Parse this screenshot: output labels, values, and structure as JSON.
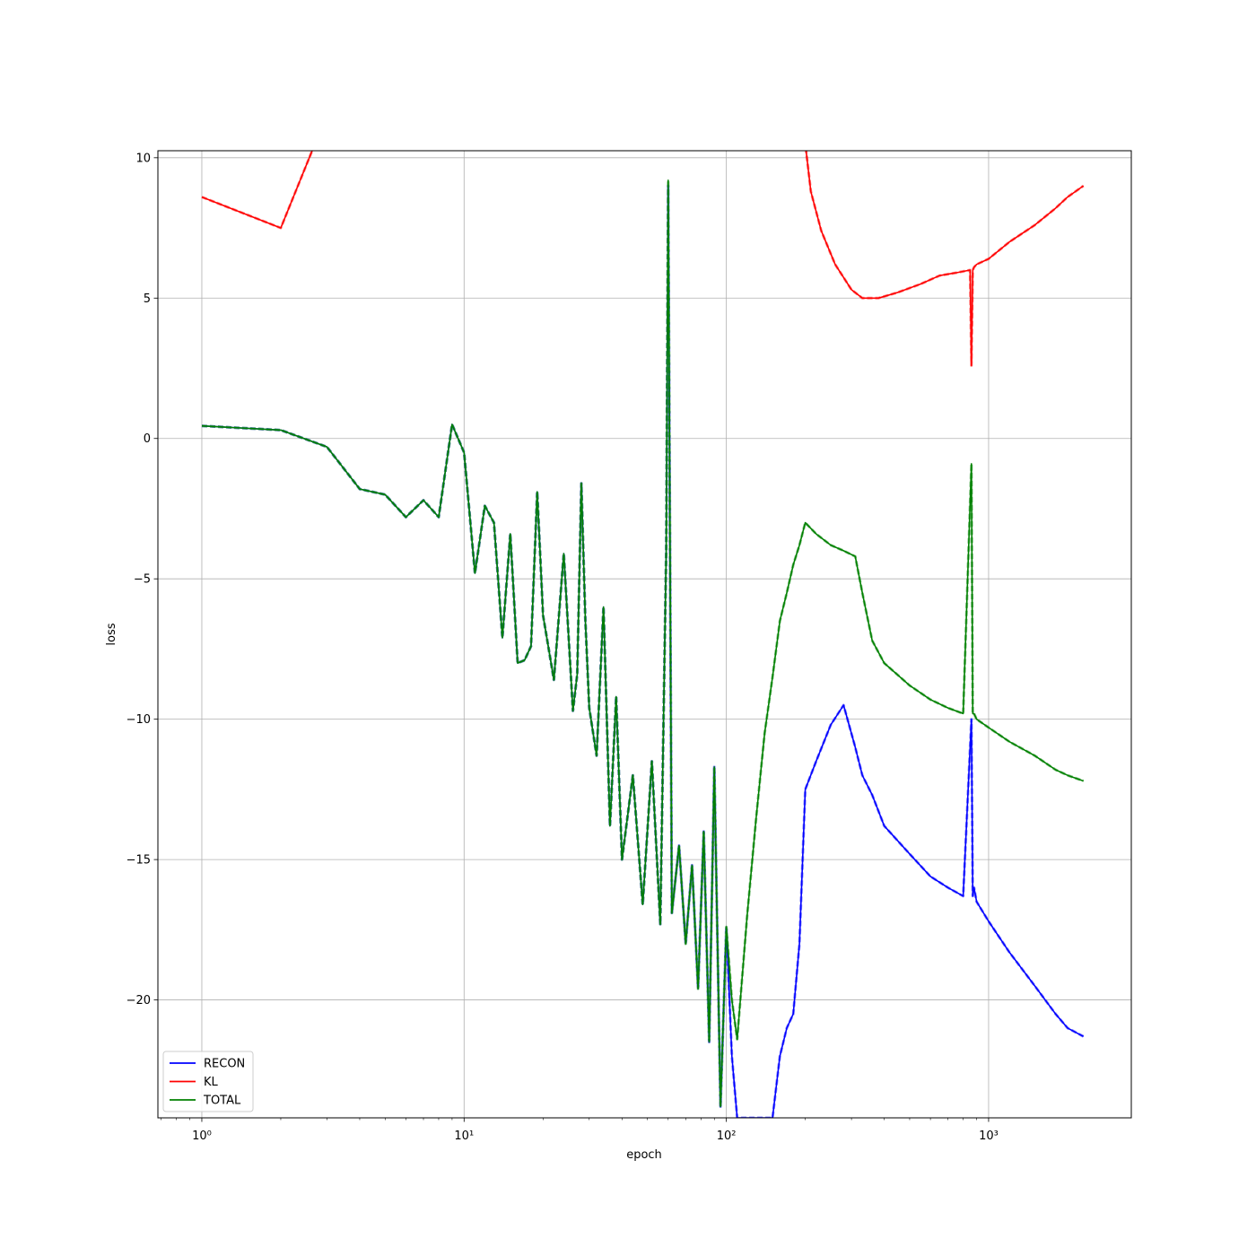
{
  "chart_data": {
    "type": "line",
    "title": "",
    "xlabel": "epoch",
    "ylabel": "loss",
    "xscale": "log",
    "xlim": [
      0.68,
      3500
    ],
    "ylim": [
      -24.2,
      10.25
    ],
    "grid": true,
    "legend_position": "lower-left",
    "x_ticks": [
      {
        "value": 1,
        "label": "10⁰"
      },
      {
        "value": 10,
        "label": "10¹"
      },
      {
        "value": 100,
        "label": "10²"
      },
      {
        "value": 1000,
        "label": "10³"
      }
    ],
    "y_ticks": [
      {
        "value": 10,
        "label": "10"
      },
      {
        "value": 5,
        "label": "5"
      },
      {
        "value": 0,
        "label": "0"
      },
      {
        "value": -5,
        "label": "−5"
      },
      {
        "value": -10,
        "label": "−10"
      },
      {
        "value": -15,
        "label": "−15"
      },
      {
        "value": -20,
        "label": "−20"
      }
    ],
    "series": [
      {
        "name": "RECON",
        "color": "#0000ff",
        "x": [
          1,
          2,
          3,
          4,
          5,
          6,
          7,
          8,
          9,
          10,
          11,
          12,
          13,
          14,
          15,
          16,
          17,
          18,
          19,
          20,
          22,
          24,
          26,
          27,
          28,
          29,
          30,
          32,
          34,
          36,
          38,
          40,
          44,
          48,
          52,
          56,
          59,
          60,
          62,
          66,
          70,
          74,
          78,
          82,
          86,
          90,
          95,
          100,
          105,
          110,
          120,
          150,
          160,
          170,
          180,
          190,
          200,
          220,
          250,
          280,
          310,
          330,
          360,
          400,
          500,
          600,
          700,
          800,
          860,
          870,
          880,
          900,
          1000,
          1200,
          1500,
          1800,
          2000,
          2300
        ],
        "values": [
          0.45,
          0.3,
          -0.3,
          -1.8,
          -2.0,
          -2.8,
          -2.2,
          -2.8,
          0.5,
          -0.5,
          -4.8,
          -2.4,
          -3.0,
          -7.1,
          -3.4,
          -8.0,
          -7.9,
          -7.4,
          -1.9,
          -6.3,
          -8.6,
          -4.1,
          -9.7,
          -8.4,
          -1.6,
          -6.5,
          -9.6,
          -11.3,
          -6.0,
          -13.8,
          -9.2,
          -15.0,
          -12.0,
          -16.6,
          -11.5,
          -17.3,
          -4.0,
          9.0,
          -16.9,
          -14.5,
          -18.0,
          -15.2,
          -19.6,
          -14.0,
          -21.5,
          -11.7,
          -23.8,
          -17.4,
          -22.0,
          -24.2,
          -24.2,
          -24.2,
          -22.0,
          -21.0,
          -20.5,
          -18.0,
          -12.5,
          -11.5,
          -10.2,
          -9.5,
          -11.0,
          -12.0,
          -12.7,
          -13.8,
          -14.8,
          -15.6,
          -16.0,
          -16.3,
          -10.0,
          -16.3,
          -16.0,
          -16.5,
          -17.2,
          -18.3,
          -19.5,
          -20.5,
          -21.0,
          -21.3
        ]
      },
      {
        "name": "KL",
        "color": "#ff0000",
        "x": [
          1,
          2,
          2.7,
          200,
          210,
          230,
          260,
          300,
          330,
          380,
          450,
          550,
          650,
          750,
          850,
          860,
          870,
          880,
          900,
          1000,
          1200,
          1500,
          1800,
          2000,
          2300
        ],
        "values": [
          8.6,
          7.5,
          10.5,
          10.5,
          8.8,
          7.4,
          6.2,
          5.3,
          5.0,
          5.0,
          5.2,
          5.5,
          5.8,
          5.9,
          6.0,
          2.6,
          6.0,
          6.1,
          6.2,
          6.4,
          7.0,
          7.6,
          8.2,
          8.6,
          9.0
        ]
      },
      {
        "name": "TOTAL",
        "color": "#008000",
        "x": [
          1,
          2,
          3,
          4,
          5,
          6,
          7,
          8,
          9,
          10,
          11,
          12,
          13,
          14,
          15,
          16,
          17,
          18,
          19,
          20,
          22,
          24,
          26,
          27,
          28,
          29,
          30,
          32,
          34,
          36,
          38,
          40,
          44,
          48,
          52,
          56,
          59,
          60,
          62,
          66,
          70,
          74,
          78,
          82,
          86,
          90,
          95,
          100,
          105,
          110,
          120,
          130,
          140,
          150,
          160,
          170,
          180,
          190,
          200,
          220,
          250,
          280,
          310,
          330,
          360,
          400,
          500,
          600,
          700,
          800,
          860,
          870,
          880,
          900,
          1000,
          1200,
          1500,
          1800,
          2000,
          2300
        ],
        "values": [
          0.45,
          0.3,
          -0.3,
          -1.8,
          -2.0,
          -2.8,
          -2.2,
          -2.8,
          0.5,
          -0.5,
          -4.8,
          -2.4,
          -3.0,
          -7.1,
          -3.4,
          -8.0,
          -7.9,
          -7.4,
          -1.9,
          -6.3,
          -8.6,
          -4.1,
          -9.7,
          -8.4,
          -1.6,
          -6.5,
          -9.6,
          -11.3,
          -6.0,
          -13.8,
          -9.2,
          -15.0,
          -12.0,
          -16.6,
          -11.5,
          -17.3,
          -4.0,
          9.2,
          -16.9,
          -14.5,
          -18.0,
          -15.2,
          -19.6,
          -14.0,
          -21.5,
          -11.7,
          -23.8,
          -17.4,
          -20.0,
          -21.4,
          -17.0,
          -13.5,
          -10.5,
          -8.5,
          -6.5,
          -5.5,
          -4.5,
          -3.8,
          -3.0,
          -3.4,
          -3.8,
          -4.0,
          -4.2,
          -5.5,
          -7.2,
          -8.0,
          -8.8,
          -9.3,
          -9.6,
          -9.8,
          -0.9,
          -9.8,
          -9.8,
          -10.0,
          -10.3,
          -10.8,
          -11.3,
          -11.8,
          -12.0,
          -12.2
        ]
      }
    ]
  }
}
